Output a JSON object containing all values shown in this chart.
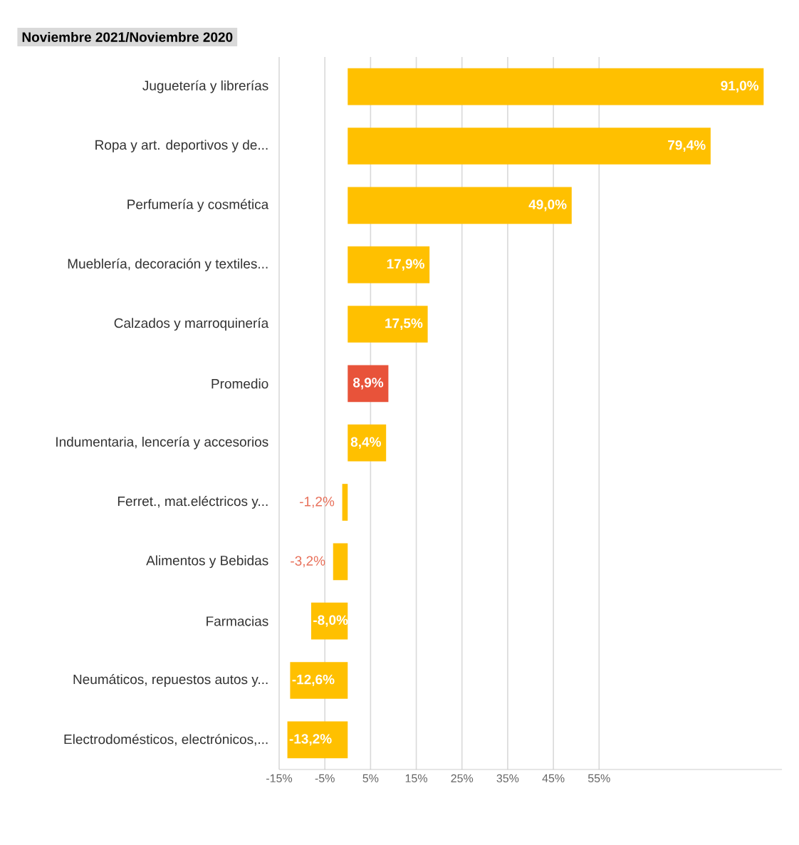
{
  "chart_data": {
    "type": "bar",
    "orientation": "horizontal",
    "title": "Noviembre 2021/Noviembre 2020",
    "categories": [
      "Juguetería y librerías",
      "Ropa y art. deportivos y de...",
      "Perfumería y cosmética",
      "Mueblería, decoración y textiles...",
      "Calzados y marroquinería",
      "Promedio",
      "Indumentaria, lencería y accesorios",
      "Ferret., mat.eléctricos y...",
      "Alimentos y Bebidas",
      "Farmacias",
      "Neumáticos, repuestos autos y...",
      "Electrodomésticos, electrónicos,..."
    ],
    "values": [
      91.0,
      79.4,
      49.0,
      17.9,
      17.5,
      8.9,
      8.4,
      -1.2,
      -3.2,
      -8.0,
      -12.6,
      -13.2
    ],
    "colors": [
      "#ffc000",
      "#ffc000",
      "#ffc000",
      "#ffc000",
      "#ffc000",
      "#e8533a",
      "#ffc000",
      "#ffc000",
      "#ffc000",
      "#ffc000",
      "#ffc000",
      "#ffc000"
    ],
    "value_labels": [
      "91,0%",
      "79,4%",
      "49,0%",
      "17,9%",
      "17,5%",
      "8,9%",
      "8,4%",
      "-1,2%",
      "-3,2%",
      "-8,0%",
      "-12,6%",
      "-13,2%"
    ],
    "xlim": [
      -15,
      95
    ],
    "xticks": [
      {
        "value": -15,
        "label": "-15%"
      },
      {
        "value": -5,
        "label": "-5%"
      },
      {
        "value": 5,
        "label": "5%"
      },
      {
        "value": 15,
        "label": "15%"
      },
      {
        "value": 25,
        "label": "25%"
      },
      {
        "value": 35,
        "label": "35%"
      },
      {
        "value": 45,
        "label": "45%"
      },
      {
        "value": 55,
        "label": "55%"
      }
    ],
    "grid": "x"
  }
}
